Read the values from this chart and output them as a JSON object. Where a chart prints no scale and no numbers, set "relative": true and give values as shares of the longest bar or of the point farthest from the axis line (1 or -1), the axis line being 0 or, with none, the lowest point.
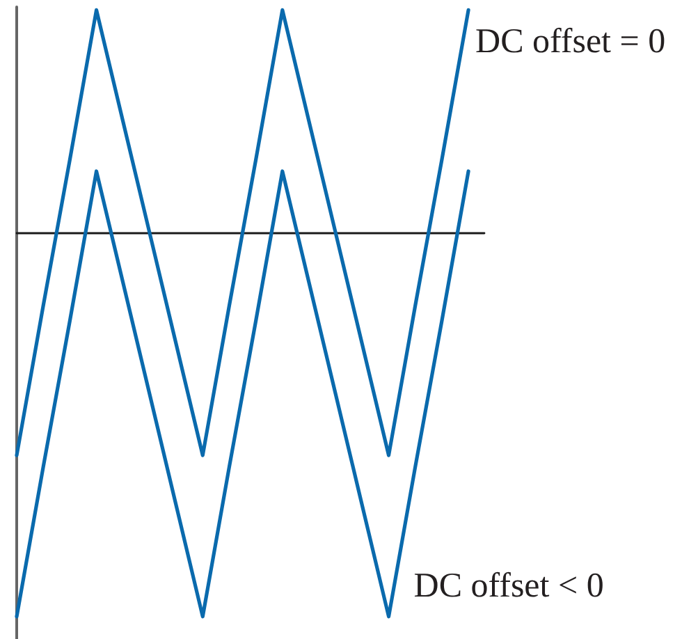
{
  "chart_data": {
    "type": "line",
    "relative": true,
    "legend": false,
    "grid": false,
    "marker": "none",
    "line_style": "solid",
    "categories": [
      null,
      null,
      null,
      null,
      null,
      null,
      null,
      null,
      null,
      null,
      null,
      null,
      null,
      null,
      null,
      null,
      null,
      null
    ],
    "series": [
      {
        "name": "DC offset = 0",
        "color": "#0a6aad",
        "values": [
          -0.58,
          -0.19,
          0.19,
          0.58,
          0.29,
          0,
          -0.29,
          -0.58,
          -0.19,
          0.19,
          0.58,
          0.29,
          0,
          -0.29,
          -0.58,
          -0.19,
          0.19,
          0.58
        ]
      },
      {
        "name": "DC offset < 0",
        "color": "#0a6aad",
        "values": [
          -1,
          -0.61,
          -0.23,
          0.16,
          -0.13,
          -0.42,
          -0.71,
          -1,
          -0.61,
          -0.23,
          0.16,
          -0.13,
          -0.42,
          -0.71,
          -1,
          -0.61,
          -0.23,
          0.16
        ]
      }
    ]
  }
}
